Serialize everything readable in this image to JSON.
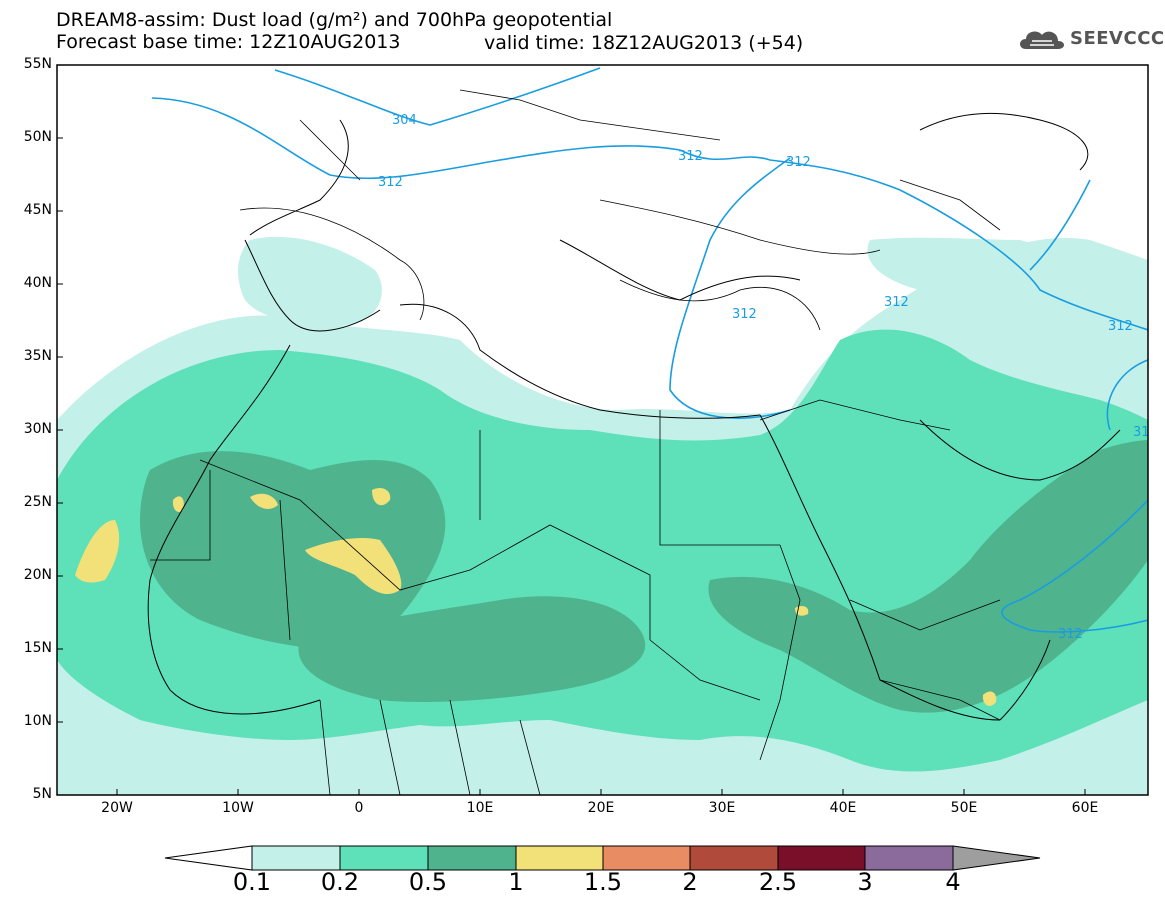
{
  "title": {
    "line1": "DREAM8-assim: Dust load (g/m²) and 700hPa geopotential",
    "line2_left": "Forecast base time: 12Z10AUG2013",
    "line2_right": "valid time: 18Z12AUG2013 (+54)"
  },
  "logo": {
    "text": "SEEVCCC",
    "icon": "cloud-icon"
  },
  "axes": {
    "lat_labels": [
      "55N",
      "50N",
      "45N",
      "40N",
      "35N",
      "30N",
      "25N",
      "20N",
      "15N",
      "10N",
      "5N"
    ],
    "lon_labels": [
      "20W",
      "10W",
      "0",
      "10E",
      "20E",
      "30E",
      "40E",
      "50E",
      "60E"
    ],
    "lat_range": [
      5,
      55
    ],
    "lon_range": [
      -25,
      65
    ]
  },
  "contours": {
    "label": "312",
    "labels": [
      "312",
      "312",
      "312",
      "312",
      "312",
      "312",
      "312",
      "312",
      "31",
      "304"
    ],
    "color": "#1a9de0"
  },
  "colorbar": {
    "levels": [
      "0.1",
      "0.2",
      "0.5",
      "1",
      "1.5",
      "2",
      "2.5",
      "3",
      "4"
    ],
    "colors": [
      "#c3f0e9",
      "#5ee0b9",
      "#4fb38e",
      "#f2e079",
      "#e88c63",
      "#b04a3a",
      "#7a0f2a",
      "#8b6a9c",
      "#9e9e9e"
    ]
  }
}
